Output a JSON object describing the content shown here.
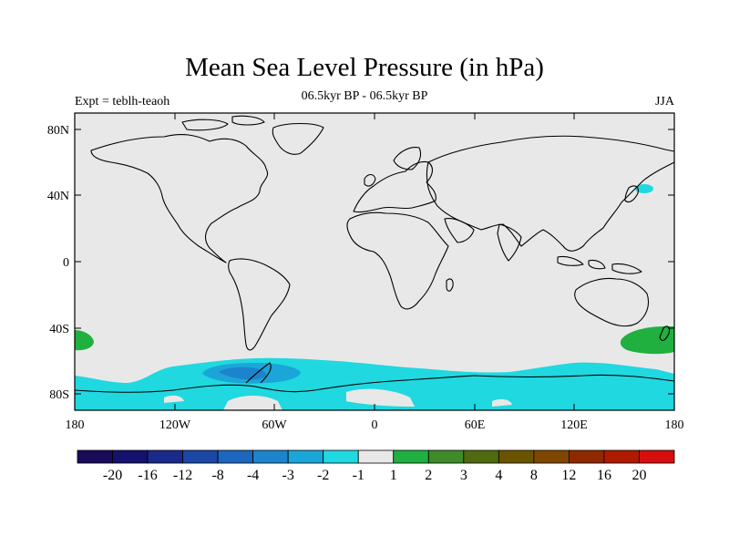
{
  "title": "Mean Sea Level Pressure (in hPa)",
  "subtitle": "06.5kyr BP - 06.5kyr BP",
  "left_label": "Expt = teblh-teaoh",
  "right_label": "JJA",
  "y_ticks": [
    "80N",
    "40N",
    "0",
    "40S",
    "80S"
  ],
  "x_ticks": [
    "180",
    "120W",
    "60W",
    "0",
    "60E",
    "120E",
    "180"
  ],
  "colorbar": {
    "colors": [
      "#1a0a5a",
      "#14126e",
      "#1a2a8a",
      "#1b48a6",
      "#1d66bd",
      "#1c84cc",
      "#1aa6d8",
      "#20d8e0",
      "#e8e8e8",
      "#20b040",
      "#3f8a2a",
      "#4f6a10",
      "#6a5400",
      "#7f4600",
      "#8f2a00",
      "#b01a00",
      "#d80e0e"
    ],
    "labels": [
      "-20",
      "-16",
      "-12",
      "-8",
      "-4",
      "-3",
      "-2",
      "-1",
      "1",
      "2",
      "3",
      "4",
      "8",
      "12",
      "16",
      "20"
    ]
  },
  "colors": {
    "background_map": "#e8e8e8",
    "neg_1_2": "#20d8e0",
    "neg_2_3": "#1aa6d8",
    "neg_3_4": "#1c84cc",
    "pos_1_2": "#20b040"
  }
}
